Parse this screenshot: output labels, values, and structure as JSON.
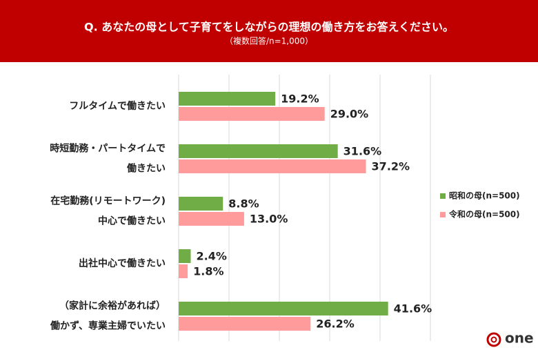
{
  "chart_data": {
    "type": "bar",
    "orientation": "horizontal",
    "title": "Q. あなたの母として子育てをしながらの理想の働き方をお答えください。",
    "subtitle": "（複数回答/n=1,000）",
    "categories": [
      [
        "フルタイムで働きたい"
      ],
      [
        "時短勤務・パートタイムで",
        "働きたい"
      ],
      [
        "在宅勤務(リモートワーク)",
        "中心で働きたい"
      ],
      [
        "出社中心で働きたい"
      ],
      [
        "（家計に余裕があれば）",
        "働かず、専業主婦でいたい"
      ]
    ],
    "series": [
      {
        "name": "昭和の母(n=500)",
        "color": "#70ad47",
        "values": [
          19.2,
          31.6,
          8.8,
          2.4,
          41.6
        ],
        "value_labels": [
          "19.2%",
          "31.6%",
          "8.8%",
          "2.4%",
          "41.6%"
        ]
      },
      {
        "name": "令和の母(n=500)",
        "color": "#ff9b9b",
        "values": [
          29.0,
          37.2,
          13.0,
          1.8,
          26.2
        ],
        "value_labels": [
          "29.0%",
          "37.2%",
          "13.0%",
          "1.8%",
          "26.2%"
        ]
      }
    ],
    "xlim": [
      0,
      50
    ],
    "xticks": [
      0,
      10,
      20,
      30,
      40,
      50
    ],
    "grid": true,
    "legend": "right",
    "brand": "one"
  }
}
